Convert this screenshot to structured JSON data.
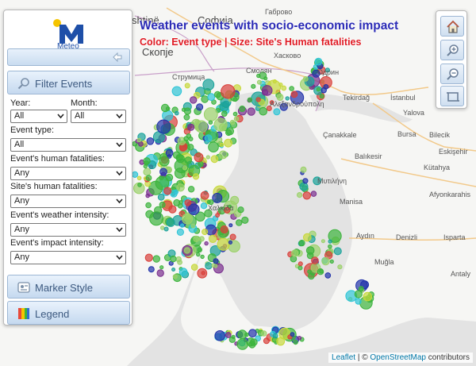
{
  "map": {
    "title": "Weather events with socio-economic impact",
    "subtitle": "Color: Event type | Size: Site's Human fatalities",
    "cities": [
      {
        "name": "Софиja",
        "big": true
      },
      {
        "name": "Габрово"
      },
      {
        "name": "Скопје",
        "big": true
      },
      {
        "name": "Хасково"
      },
      {
        "name": "Струмица"
      },
      {
        "name": "Смолян"
      },
      {
        "name": "Одрин"
      },
      {
        "name": "Tekirdağ"
      },
      {
        "name": "İstanbul"
      },
      {
        "name": "Yalova"
      },
      {
        "name": "Bursa"
      },
      {
        "name": "Bilecik"
      },
      {
        "name": "Çanakkale"
      },
      {
        "name": "Eskişehir"
      },
      {
        "name": "Balıkesir"
      },
      {
        "name": "Kütahya"
      },
      {
        "name": "Μυτιλήνη"
      },
      {
        "name": "Afyonkarahis"
      },
      {
        "name": "Manisa"
      },
      {
        "name": "Aydın"
      },
      {
        "name": "Denizli"
      },
      {
        "name": "Isparta"
      },
      {
        "name": "Muğla"
      },
      {
        "name": "Antaly"
      },
      {
        "name": "Αλεξανδρούπολη"
      },
      {
        "name": "Χαλκίδα"
      },
      {
        "name": "shtinë"
      }
    ],
    "legend_colors": {
      "green": "#3cb43c",
      "light_green": "#9bd16a",
      "yellow_green": "#c7d83a",
      "red": "#d9403a",
      "blue": "#2233aa",
      "teal": "#1aa39a",
      "purple": "#7a2f8f",
      "cyan": "#2ec4d6"
    },
    "attribution": {
      "leaflet": "Leaflet",
      "separator": " | © ",
      "osm": "OpenStreetMap",
      "suffix": " contributors"
    }
  },
  "panel": {
    "logo_text": "Meteo",
    "filter_label": "Filter Events",
    "filters": {
      "year_label": "Year:",
      "year_value": "All",
      "month_label": "Month:",
      "month_value": "All",
      "event_type_label": "Event type:",
      "event_type_value": "All",
      "event_fatalities_label": "Event's human fatalities:",
      "event_fatalities_value": "Any",
      "site_fatalities_label": "Site's human fatalities:",
      "site_fatalities_value": "Any",
      "weather_intensity_label": "Event's weather intensity:",
      "weather_intensity_value": "Any",
      "impact_intensity_label": "Event's impact intensity:",
      "impact_intensity_value": "Any"
    },
    "marker_style_label": "Marker Style",
    "legend_label": "Legend"
  },
  "zoom": {
    "home_icon": "home-icon",
    "zoom_in_icon": "zoom-in-icon",
    "zoom_out_icon": "zoom-out-icon",
    "extent_icon": "full-extent-icon"
  }
}
